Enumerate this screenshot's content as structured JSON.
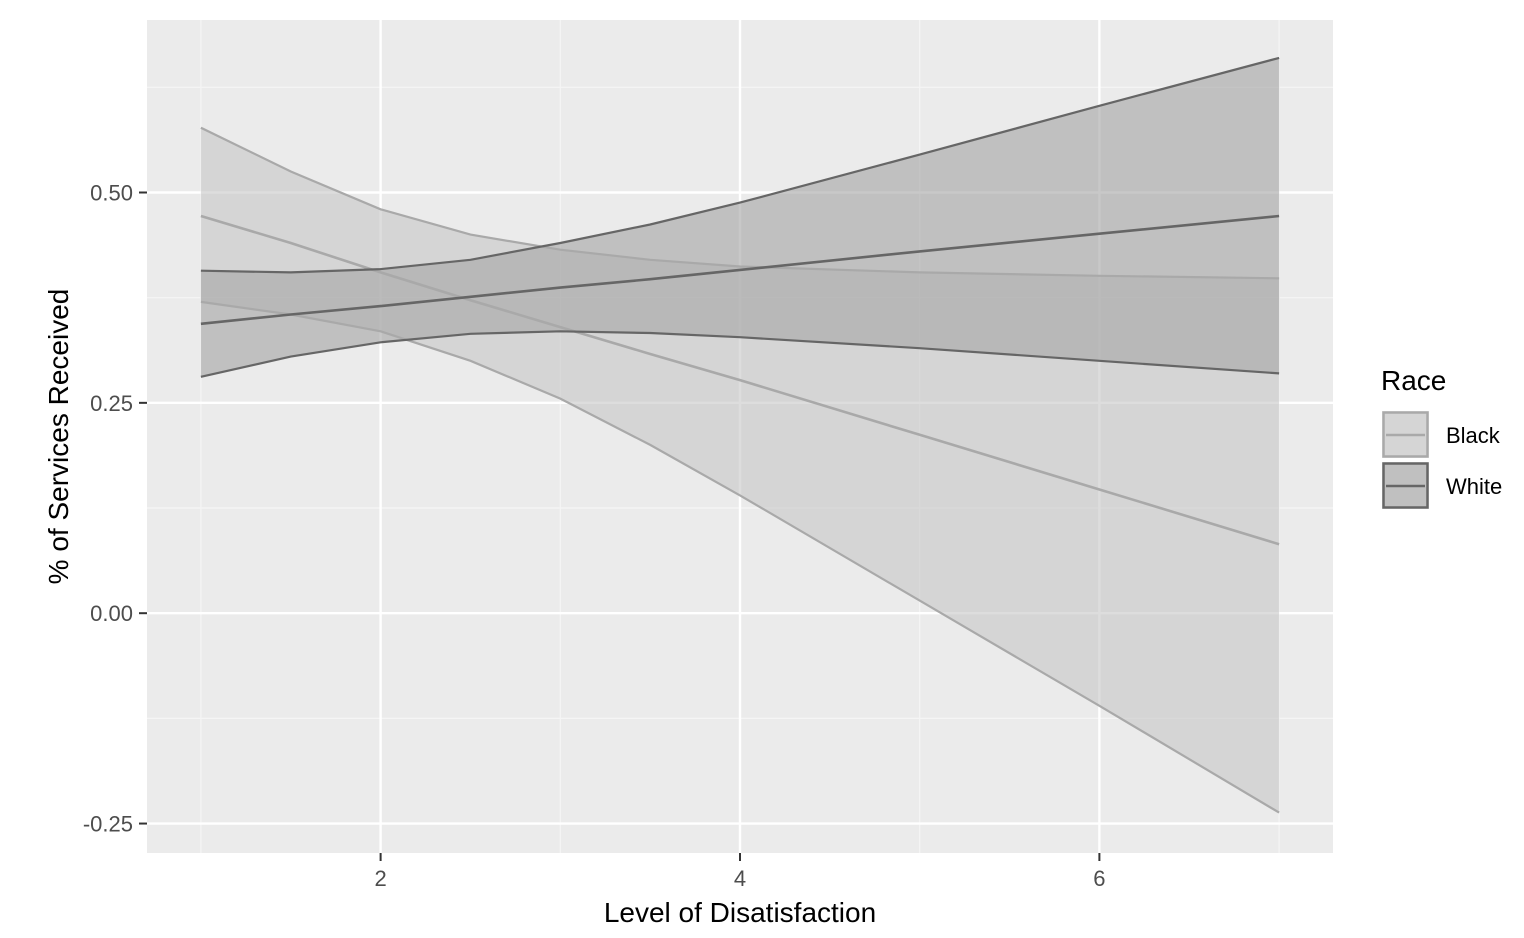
{
  "chart_data": {
    "type": "line",
    "xlabel": "Level of Disatisfaction",
    "ylabel": "% of Services Received",
    "xlim": [
      0.7,
      7.3
    ],
    "ylim": [
      -0.285,
      0.705
    ],
    "x_ticks": [
      2,
      4,
      6
    ],
    "y_ticks": [
      -0.25,
      0.0,
      0.25,
      0.5
    ],
    "y_tick_labels": [
      "-0.25",
      "0.00",
      "0.25",
      "0.50"
    ],
    "x_tick_labels": [
      "2",
      "4",
      "6"
    ],
    "grid": true,
    "legend": {
      "title": "Race",
      "placement": "right"
    },
    "colors": {
      "panel": "#ebebeb",
      "grid_major": "#ffffff",
      "grid_minor": "#f5f5f5",
      "tick": "#333333",
      "black_fill": "#c8c8c8",
      "black_line": "#a9a9a9",
      "white_fill": "#a6a6a6",
      "white_line": "#666666"
    },
    "series": [
      {
        "name": "Black",
        "x": [
          1,
          1.5,
          2,
          2.5,
          3,
          3.5,
          4,
          5,
          6,
          7
        ],
        "fit": [
          0.472,
          0.44,
          0.405,
          0.372,
          0.34,
          0.308,
          0.277,
          0.212,
          0.147,
          0.082
        ],
        "lower": [
          0.37,
          0.355,
          0.335,
          0.3,
          0.255,
          0.2,
          0.14,
          0.015,
          -0.11,
          -0.237
        ],
        "upper": [
          0.577,
          0.525,
          0.48,
          0.45,
          0.432,
          0.42,
          0.412,
          0.405,
          0.401,
          0.398
        ]
      },
      {
        "name": "White",
        "x": [
          1,
          1.5,
          2,
          2.5,
          3,
          3.5,
          4,
          5,
          6,
          7
        ],
        "fit": [
          0.344,
          0.355,
          0.365,
          0.376,
          0.387,
          0.397,
          0.408,
          0.43,
          0.451,
          0.472
        ],
        "lower": [
          0.281,
          0.305,
          0.322,
          0.332,
          0.335,
          0.333,
          0.328,
          0.315,
          0.3,
          0.285
        ],
        "upper": [
          0.407,
          0.405,
          0.409,
          0.42,
          0.44,
          0.462,
          0.488,
          0.545,
          0.603,
          0.66
        ]
      }
    ]
  }
}
